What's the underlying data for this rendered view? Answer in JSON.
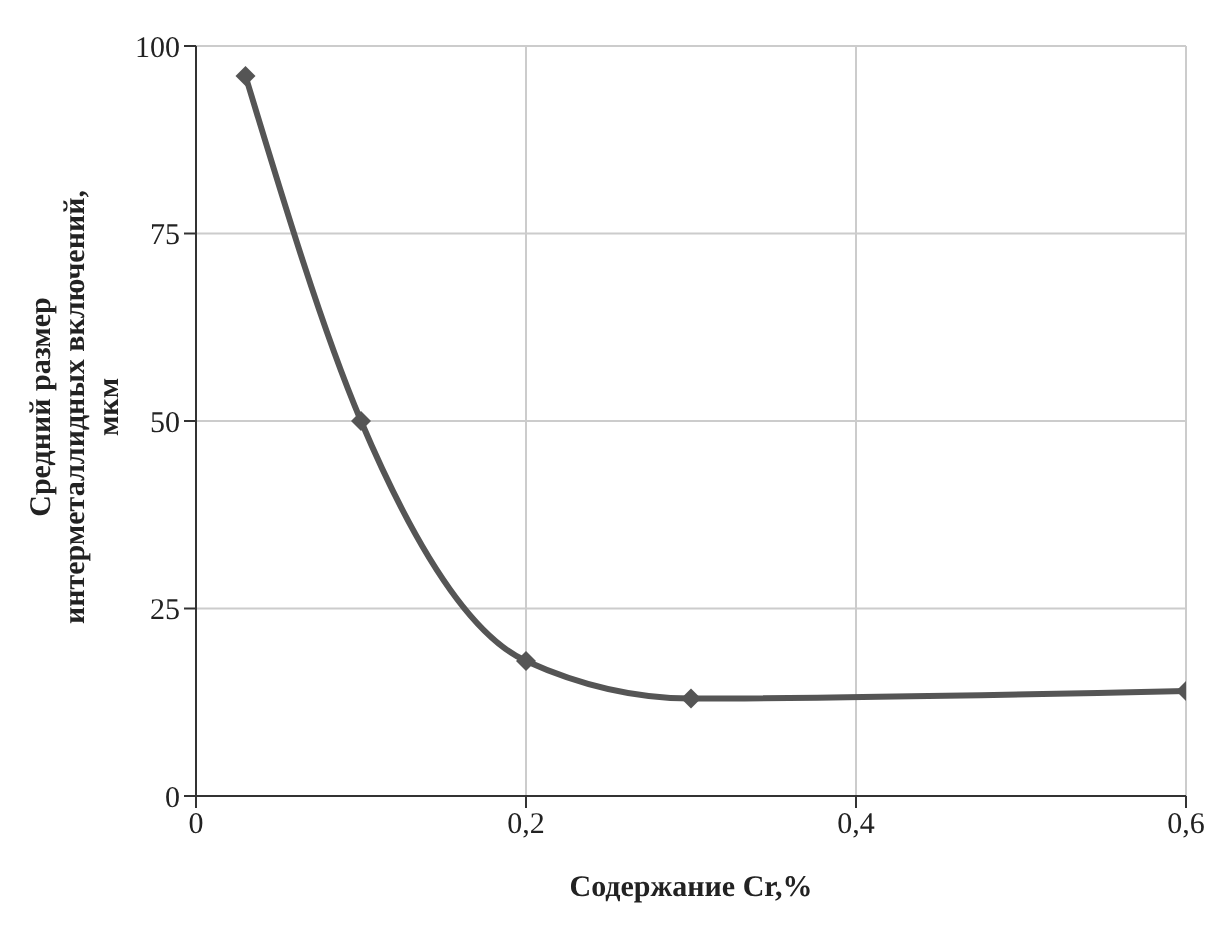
{
  "chart_data": {
    "type": "line",
    "xlabel": "Содержание Cr,%",
    "ylabel": "Средний размер\nинтерметаллидных включений,\nмкм",
    "x": [
      0.03,
      0.1,
      0.2,
      0.3,
      0.6
    ],
    "series": [
      {
        "color": "#555555",
        "values": [
          96,
          50,
          18,
          13,
          14
        ]
      }
    ],
    "xlim": [
      0,
      0.6
    ],
    "xticks": [
      0,
      {
        "value": 0.2,
        "label": "0,2"
      },
      {
        "value": 0.4,
        "label": "0,4"
      },
      {
        "value": 0.6,
        "label": "0,6"
      }
    ],
    "ylim": [
      0,
      100
    ],
    "yticks": [
      0,
      25,
      50,
      75,
      100
    ],
    "grid": true,
    "marker": "diamond",
    "line_style": "solid",
    "legend": false
  }
}
